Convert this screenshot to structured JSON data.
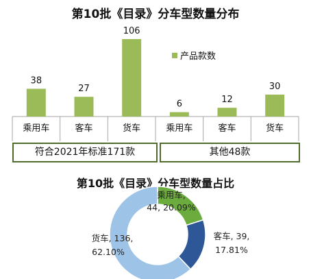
{
  "chart_data": [
    {
      "type": "bar",
      "title": "第10批《目录》分车型数量分布",
      "categories": [
        "乘用车",
        "客车",
        "货车",
        "乘用车",
        "客车",
        "货车"
      ],
      "series": [
        {
          "name": "产品款数",
          "values": [
            38,
            27,
            106,
            6,
            12,
            30
          ],
          "color": "#9bbb59"
        }
      ],
      "groups": [
        {
          "label": "符合2021年标准171款",
          "categories": [
            "乘用车",
            "客车",
            "货车"
          ]
        },
        {
          "label": "其他48款",
          "categories": [
            "乘用车",
            "客车",
            "货车"
          ]
        }
      ],
      "ylim": [
        0,
        106
      ],
      "grid": false,
      "legend": "inside-right"
    },
    {
      "type": "pie",
      "title": "第10批《目录》分车型数量占比",
      "slices": [
        {
          "category": "乘用车",
          "value": 44,
          "percent": "20.09%",
          "label_line1": "乘用车,",
          "label_line2": "44, 20.09%",
          "color": "#6cab3d"
        },
        {
          "category": "客车",
          "value": 39,
          "percent": "17.81%",
          "label_line1": "客车, 39,",
          "label_line2": "17.81%",
          "color": "#2e5797"
        },
        {
          "category": "货车",
          "value": 136,
          "percent": "62.10%",
          "label_line1": "货车, 136,",
          "label_line2": "62.10%",
          "color": "#9dc3e6"
        }
      ],
      "donut": true
    }
  ]
}
